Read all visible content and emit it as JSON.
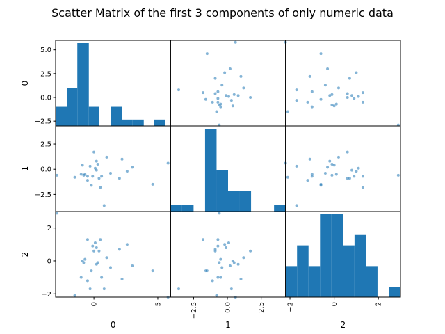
{
  "chart_data": {
    "type": "scatter_matrix",
    "title": "Scatter Matrix of the first 3 components of only numeric data",
    "variables": [
      "0",
      "1",
      "2"
    ],
    "marker_color": "#1f77b4",
    "bar_color": "#1f77b4",
    "grid": false,
    "ranges": [
      [
        -3.0,
        6.0
      ],
      [
        -4.2,
        4.3
      ],
      [
        -2.2,
        3.0
      ]
    ],
    "bottom_ticks": [
      {
        "values": [
          0,
          5
        ],
        "labels": [
          "0",
          "5"
        ]
      },
      {
        "values": [
          -2.5,
          0,
          2.5
        ],
        "labels": [
          "−2.5",
          "0.0",
          "2.5"
        ]
      },
      {
        "values": [
          -2,
          0,
          2
        ],
        "labels": [
          "−2",
          "0",
          "2"
        ]
      }
    ],
    "left_ticks": [
      {
        "values": [
          -2.5,
          0,
          2.5,
          5
        ],
        "labels": [
          "−2.5",
          "0.0",
          "2.5",
          "5.0"
        ]
      },
      {
        "values": [
          -2.5,
          0,
          2.5
        ],
        "labels": [
          "−2.5",
          "0.0",
          "2.5"
        ]
      },
      {
        "values": [
          -2,
          0,
          2
        ],
        "labels": [
          "−2",
          "0",
          "2"
        ]
      }
    ],
    "points": [
      [
        -1.5,
        -0.8,
        -2.1
      ],
      [
        -1.0,
        -0.5,
        -1.0
      ],
      [
        -0.9,
        0.4,
        0.0
      ],
      [
        -0.8,
        -0.6,
        -0.1
      ],
      [
        -0.7,
        -0.5,
        0.1
      ],
      [
        -0.5,
        -1.1,
        -1.2
      ],
      [
        -0.5,
        -0.7,
        1.3
      ],
      [
        -0.3,
        0.3,
        -1.7
      ],
      [
        -0.2,
        -1.6,
        -0.6
      ],
      [
        -0.1,
        -0.7,
        0.9
      ],
      [
        0.0,
        1.7,
        0.6
      ],
      [
        0.1,
        0.1,
        1.1
      ],
      [
        0.2,
        0.8,
        -0.2
      ],
      [
        0.2,
        -0.1,
        0.8
      ],
      [
        0.3,
        0.5,
        -0.1
      ],
      [
        0.4,
        -0.9,
        0.6
      ],
      [
        0.5,
        -1.8,
        1.3
      ],
      [
        0.6,
        -0.7,
        -1.0
      ],
      [
        0.8,
        -3.6,
        -1.7
      ],
      [
        1.0,
        1.2,
        0.2
      ],
      [
        1.3,
        -0.4,
        -0.4
      ],
      [
        2.0,
        -0.9,
        0.7
      ],
      [
        2.2,
        1.0,
        -1.1
      ],
      [
        2.6,
        -0.2,
        1.0
      ],
      [
        3.0,
        0.2,
        -0.3
      ],
      [
        4.6,
        -1.5,
        -0.6
      ],
      [
        5.8,
        0.6,
        -2.2
      ],
      [
        -2.9,
        -0.6,
        2.9
      ]
    ],
    "histograms": [
      {
        "edges": [
          -3.0,
          -2.1,
          -1.3,
          -0.4,
          0.4,
          1.3,
          2.2,
          3.0,
          3.9,
          4.7,
          5.6
        ],
        "counts": [
          3,
          6,
          13,
          3,
          0,
          3,
          1,
          1,
          0,
          1
        ]
      },
      {
        "edges": [
          -4.2,
          -3.35,
          -2.5,
          -1.65,
          -0.8,
          0.05,
          0.9,
          1.75,
          2.6,
          3.45,
          4.3
        ],
        "counts": [
          1,
          1,
          0,
          12,
          6,
          3,
          3,
          0,
          0,
          1
        ]
      },
      {
        "edges": [
          -2.2,
          -1.68,
          -1.16,
          -0.64,
          -0.12,
          0.4,
          0.92,
          1.44,
          1.96,
          2.48,
          3.0
        ],
        "counts": [
          3,
          5,
          3,
          8,
          8,
          5,
          6,
          3,
          0,
          1
        ]
      }
    ]
  }
}
